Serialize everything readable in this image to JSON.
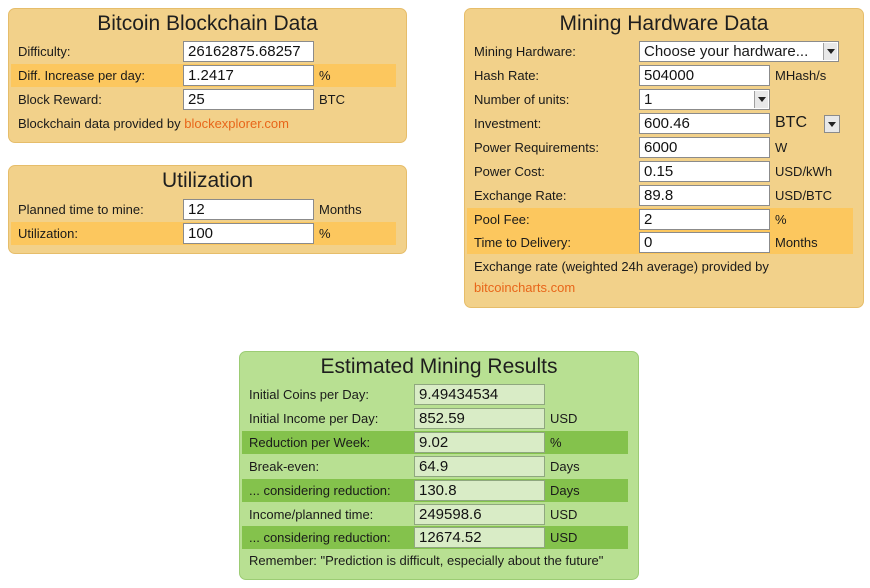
{
  "blockchain": {
    "title": "Bitcoin Blockchain Data",
    "difficulty_label": "Difficulty:",
    "difficulty_value": "26162875.68257",
    "increase_label": "Diff. Increase per day:",
    "increase_value": "1.2417",
    "increase_unit": "%",
    "reward_label": "Block Reward:",
    "reward_value": "25",
    "reward_unit": "BTC",
    "provider_text": "Blockchain data provided by ",
    "provider_link": "blockexplorer.com"
  },
  "utilization": {
    "title": "Utilization",
    "planned_label": "Planned time to mine:",
    "planned_value": "12",
    "planned_unit": "Months",
    "util_label": "Utilization:",
    "util_value": "100",
    "util_unit": "%"
  },
  "hardware": {
    "title": "Mining Hardware Data",
    "hardware_label": "Mining Hardware:",
    "hardware_selected": "Choose your hardware...",
    "hashrate_label": "Hash Rate:",
    "hashrate_value": "504000",
    "hashrate_unit": "MHash/s",
    "units_label": "Number of units:",
    "units_selected": "1",
    "investment_label": "Investment:",
    "investment_value": "600.46",
    "investment_currency": "BTC",
    "power_label": "Power Requirements:",
    "power_value": "6000",
    "power_unit": "W",
    "cost_label": "Power Cost:",
    "cost_value": "0.15",
    "cost_unit": "USD/kWh",
    "rate_label": "Exchange Rate:",
    "rate_value": "89.8",
    "rate_unit": "USD/BTC",
    "pool_label": "Pool Fee:",
    "pool_value": "2",
    "pool_unit": "%",
    "delivery_label": "Time to Delivery:",
    "delivery_value": "0",
    "delivery_unit": "Months",
    "provider_text": "Exchange rate (weighted 24h average) provided by",
    "provider_link": "bitcoincharts.com"
  },
  "results": {
    "title": "Estimated Mining Results",
    "coins_label": "Initial Coins per Day:",
    "coins_value": "9.49434534",
    "income_label": "Initial Income per Day:",
    "income_value": "852.59",
    "income_unit": "USD",
    "reduction_label": "Reduction per Week:",
    "reduction_value": "9.02",
    "reduction_unit": "%",
    "breakeven_label": "Break-even:",
    "breakeven_value": "64.9",
    "breakeven_unit": "Days",
    "breakeven_red_label": "... considering reduction:",
    "breakeven_red_value": "130.8",
    "breakeven_red_unit": "Days",
    "planned_label": "Income/planned time:",
    "planned_value": "249598.6",
    "planned_unit": "USD",
    "planned_red_label": "... considering reduction:",
    "planned_red_value": "12674.52",
    "planned_red_unit": "USD",
    "remember": "Remember: \"Prediction is difficult, especially about the future\""
  },
  "colors": {
    "orange_panel": "#f2d18a",
    "orange_highlight": "#fcc75e",
    "green_panel": "#b8e092",
    "green_highlight": "#84c24c",
    "link": "#e8661a"
  }
}
